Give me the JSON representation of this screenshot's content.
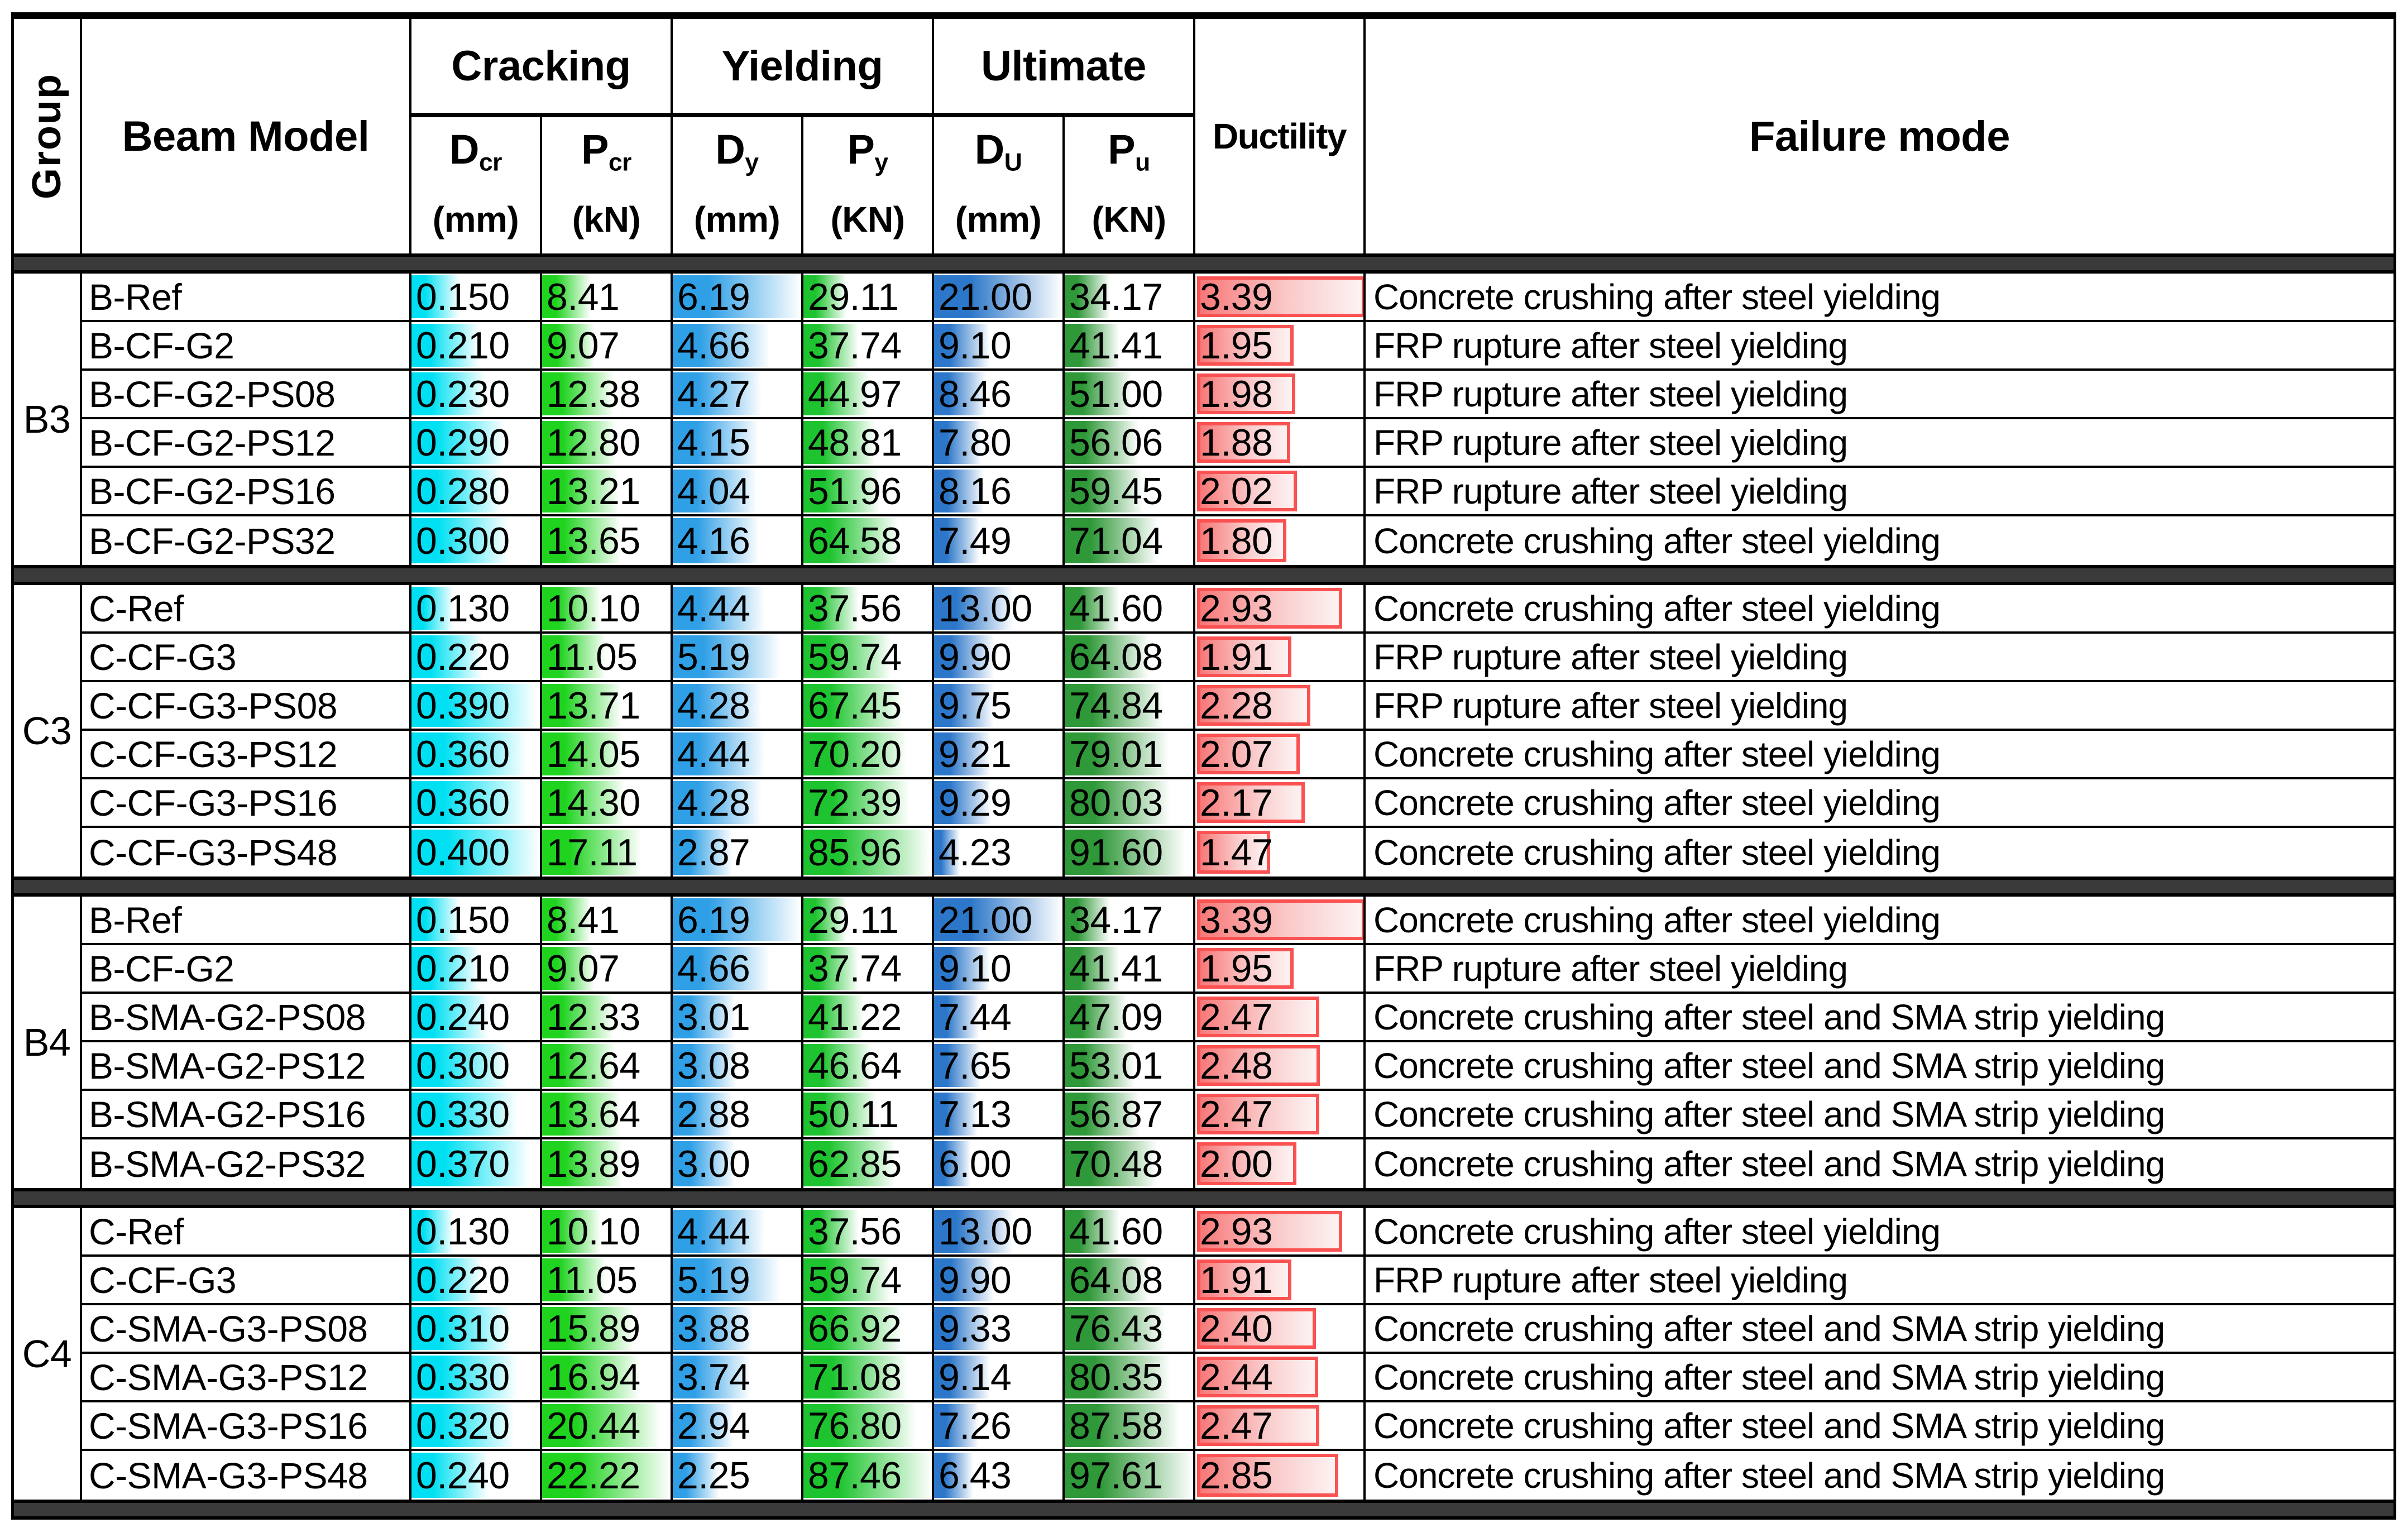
{
  "header": {
    "group_label": "Group",
    "beam_model_label": "Beam Model",
    "sections": [
      {
        "label": "Cracking"
      },
      {
        "label": "Yielding"
      },
      {
        "label": "Ultimate"
      }
    ],
    "sub_columns": [
      {
        "key": "d_cr",
        "base": "D",
        "sub": "cr",
        "unit": "(mm)"
      },
      {
        "key": "p_cr",
        "base": "P",
        "sub": "cr",
        "unit": "(kN)"
      },
      {
        "key": "d_y",
        "base": "D",
        "sub": "y",
        "unit": "(mm)"
      },
      {
        "key": "p_y",
        "base": "P",
        "sub": "y",
        "unit": "(KN)"
      },
      {
        "key": "d_u",
        "base": "D",
        "sub": "U",
        "unit": "(mm)"
      },
      {
        "key": "p_u",
        "base": "P",
        "sub": "u",
        "unit": "(KN)"
      }
    ],
    "ductility_label": "Ductility",
    "failure_mode_label": "Failure mode"
  },
  "bar_colors": {
    "d_cr": "#00E0F2",
    "p_cr": "#1FD31F",
    "d_y": "#2F9FE6",
    "p_y": "#1EC42F",
    "d_u": "#2C77C9",
    "p_u": "#2F9838",
    "ductility_border": "#FA5252",
    "ductility_fill_start": "#F87878",
    "separator": "#3A3A3A"
  },
  "chart_data": {
    "type": "table",
    "columns": [
      "Group",
      "Beam Model",
      "D_cr (mm)",
      "P_cr (kN)",
      "D_y (mm)",
      "P_y (KN)",
      "D_U (mm)",
      "P_u (KN)",
      "Ductility",
      "Failure mode"
    ],
    "value_keys": [
      "d_cr",
      "p_cr",
      "d_y",
      "p_y",
      "d_u",
      "p_u"
    ],
    "column_max": {
      "d_cr": 0.4,
      "p_cr": 22.22,
      "d_y": 6.19,
      "p_y": 87.46,
      "d_u": 21.0,
      "p_u": 97.61,
      "ductility": 3.39
    },
    "groups": [
      {
        "name": "B3",
        "rows": [
          {
            "model": "B-Ref",
            "d_cr": "0.150",
            "p_cr": "8.41",
            "d_y": "6.19",
            "p_y": "29.11",
            "d_u": "21.00",
            "p_u": "34.17",
            "ductility": "3.39",
            "failure": "Concrete crushing after steel yielding"
          },
          {
            "model": "B-CF-G2",
            "d_cr": "0.210",
            "p_cr": "9.07",
            "d_y": "4.66",
            "p_y": "37.74",
            "d_u": "9.10",
            "p_u": "41.41",
            "ductility": "1.95",
            "failure": "FRP rupture after steel yielding"
          },
          {
            "model": "B-CF-G2-PS08",
            "d_cr": "0.230",
            "p_cr": "12.38",
            "d_y": "4.27",
            "p_y": "44.97",
            "d_u": "8.46",
            "p_u": "51.00",
            "ductility": "1.98",
            "failure": "FRP rupture after steel yielding"
          },
          {
            "model": "B-CF-G2-PS12",
            "d_cr": "0.290",
            "p_cr": "12.80",
            "d_y": "4.15",
            "p_y": "48.81",
            "d_u": "7.80",
            "p_u": "56.06",
            "ductility": "1.88",
            "failure": "FRP rupture after steel yielding"
          },
          {
            "model": "B-CF-G2-PS16",
            "d_cr": "0.280",
            "p_cr": "13.21",
            "d_y": "4.04",
            "p_y": "51.96",
            "d_u": "8.16",
            "p_u": "59.45",
            "ductility": "2.02",
            "failure": "FRP rupture after steel yielding"
          },
          {
            "model": "B-CF-G2-PS32",
            "d_cr": "0.300",
            "p_cr": "13.65",
            "d_y": "4.16",
            "p_y": "64.58",
            "d_u": "7.49",
            "p_u": "71.04",
            "ductility": "1.80",
            "failure": "Concrete crushing after steel yielding"
          }
        ]
      },
      {
        "name": "C3",
        "rows": [
          {
            "model": "C-Ref",
            "d_cr": "0.130",
            "p_cr": "10.10",
            "d_y": "4.44",
            "p_y": "37.56",
            "d_u": "13.00",
            "p_u": "41.60",
            "ductility": "2.93",
            "failure": "Concrete crushing after steel yielding"
          },
          {
            "model": "C-CF-G3",
            "d_cr": "0.220",
            "p_cr": "11.05",
            "d_y": "5.19",
            "p_y": "59.74",
            "d_u": "9.90",
            "p_u": "64.08",
            "ductility": "1.91",
            "failure": "FRP rupture after steel yielding"
          },
          {
            "model": "C-CF-G3-PS08",
            "d_cr": "0.390",
            "p_cr": "13.71",
            "d_y": "4.28",
            "p_y": "67.45",
            "d_u": "9.75",
            "p_u": "74.84",
            "ductility": "2.28",
            "failure": "FRP rupture after steel yielding"
          },
          {
            "model": "C-CF-G3-PS12",
            "d_cr": "0.360",
            "p_cr": "14.05",
            "d_y": "4.44",
            "p_y": "70.20",
            "d_u": "9.21",
            "p_u": "79.01",
            "ductility": "2.07",
            "failure": "Concrete crushing after steel yielding"
          },
          {
            "model": "C-CF-G3-PS16",
            "d_cr": "0.360",
            "p_cr": "14.30",
            "d_y": "4.28",
            "p_y": "72.39",
            "d_u": "9.29",
            "p_u": "80.03",
            "ductility": "2.17",
            "failure": "Concrete crushing after steel yielding"
          },
          {
            "model": "C-CF-G3-PS48",
            "d_cr": "0.400",
            "p_cr": "17.11",
            "d_y": "2.87",
            "p_y": "85.96",
            "d_u": "4.23",
            "p_u": "91.60",
            "ductility": "1.47",
            "failure": "Concrete crushing after steel yielding"
          }
        ]
      },
      {
        "name": "B4",
        "rows": [
          {
            "model": "B-Ref",
            "d_cr": "0.150",
            "p_cr": "8.41",
            "d_y": "6.19",
            "p_y": "29.11",
            "d_u": "21.00",
            "p_u": "34.17",
            "ductility": "3.39",
            "failure": "Concrete crushing after steel yielding"
          },
          {
            "model": "B-CF-G2",
            "d_cr": "0.210",
            "p_cr": "9.07",
            "d_y": "4.66",
            "p_y": "37.74",
            "d_u": "9.10",
            "p_u": "41.41",
            "ductility": "1.95",
            "failure": "FRP rupture after steel yielding"
          },
          {
            "model": "B-SMA-G2-PS08",
            "d_cr": "0.240",
            "p_cr": "12.33",
            "d_y": "3.01",
            "p_y": "41.22",
            "d_u": "7.44",
            "p_u": "47.09",
            "ductility": "2.47",
            "failure": "Concrete crushing after steel and SMA strip yielding"
          },
          {
            "model": "B-SMA-G2-PS12",
            "d_cr": "0.300",
            "p_cr": "12.64",
            "d_y": "3.08",
            "p_y": "46.64",
            "d_u": "7.65",
            "p_u": "53.01",
            "ductility": "2.48",
            "failure": "Concrete crushing after steel and SMA strip yielding"
          },
          {
            "model": "B-SMA-G2-PS16",
            "d_cr": "0.330",
            "p_cr": "13.64",
            "d_y": "2.88",
            "p_y": "50.11",
            "d_u": "7.13",
            "p_u": "56.87",
            "ductility": "2.47",
            "failure": "Concrete crushing after steel and SMA strip yielding"
          },
          {
            "model": "B-SMA-G2-PS32",
            "d_cr": "0.370",
            "p_cr": "13.89",
            "d_y": "3.00",
            "p_y": "62.85",
            "d_u": "6.00",
            "p_u": "70.48",
            "ductility": "2.00",
            "failure": "Concrete crushing after steel and SMA strip yielding"
          }
        ]
      },
      {
        "name": "C4",
        "rows": [
          {
            "model": "C-Ref",
            "d_cr": "0.130",
            "p_cr": "10.10",
            "d_y": "4.44",
            "p_y": "37.56",
            "d_u": "13.00",
            "p_u": "41.60",
            "ductility": "2.93",
            "failure": "Concrete crushing after steel yielding"
          },
          {
            "model": "C-CF-G3",
            "d_cr": "0.220",
            "p_cr": "11.05",
            "d_y": "5.19",
            "p_y": "59.74",
            "d_u": "9.90",
            "p_u": "64.08",
            "ductility": "1.91",
            "failure": "FRP rupture after steel yielding"
          },
          {
            "model": "C-SMA-G3-PS08",
            "d_cr": "0.310",
            "p_cr": "15.89",
            "d_y": "3.88",
            "p_y": "66.92",
            "d_u": "9.33",
            "p_u": "76.43",
            "ductility": "2.40",
            "failure": "Concrete crushing after steel and SMA strip yielding"
          },
          {
            "model": "C-SMA-G3-PS12",
            "d_cr": "0.330",
            "p_cr": "16.94",
            "d_y": "3.74",
            "p_y": "71.08",
            "d_u": "9.14",
            "p_u": "80.35",
            "ductility": "2.44",
            "failure": "Concrete crushing after steel and SMA strip yielding"
          },
          {
            "model": "C-SMA-G3-PS16",
            "d_cr": "0.320",
            "p_cr": "20.44",
            "d_y": "2.94",
            "p_y": "76.80",
            "d_u": "7.26",
            "p_u": "87.58",
            "ductility": "2.47",
            "failure": "Concrete crushing after steel and SMA strip yielding"
          },
          {
            "model": "C-SMA-G3-PS48",
            "d_cr": "0.240",
            "p_cr": "22.22",
            "d_y": "2.25",
            "p_y": "87.46",
            "d_u": "6.43",
            "p_u": "97.61",
            "ductility": "2.85",
            "failure": "Concrete crushing after steel and SMA strip yielding"
          }
        ]
      }
    ]
  }
}
